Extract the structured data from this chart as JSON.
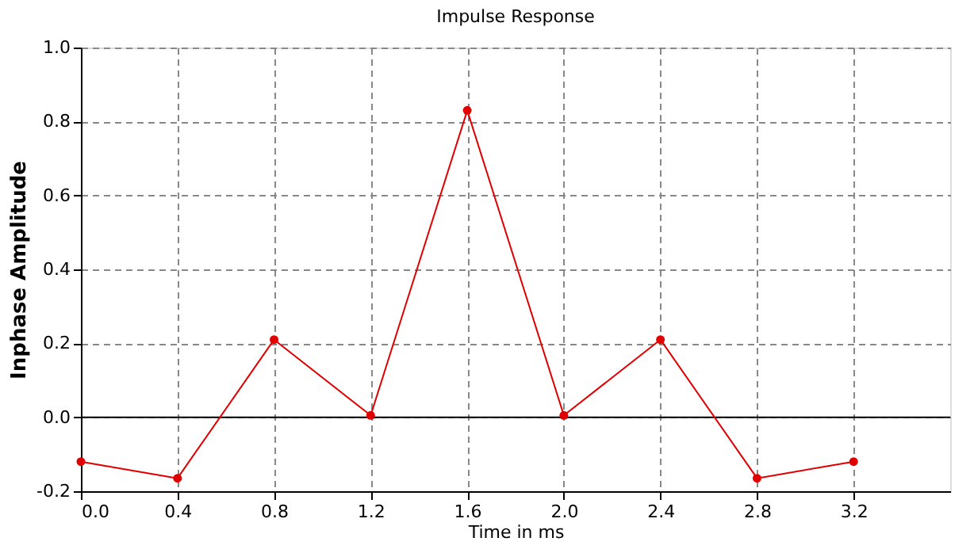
{
  "chart_data": {
    "type": "line",
    "title": "Impulse Response",
    "xlabel": "Time in ms",
    "ylabel": "Inphase Amplitude",
    "x": [
      0.0,
      0.4,
      0.8,
      1.2,
      1.6,
      2.0,
      2.4,
      2.8,
      3.2
    ],
    "series": [
      {
        "color": "#e00000",
        "values": [
          -0.12,
          -0.165,
          0.21,
          0.005,
          0.83,
          0.005,
          0.21,
          -0.165,
          -0.12
        ]
      }
    ],
    "xlim": [
      0,
      3.6
    ],
    "xticks": [
      {
        "value": 0,
        "label": "0.0"
      },
      0.4,
      0.8,
      1.2,
      1.6,
      {
        "value": 2,
        "label": "2.0"
      },
      2.4,
      2.8,
      3.2
    ],
    "ylim": [
      -0.2,
      1.0
    ],
    "yticks": [
      -0.2,
      {
        "value": 0,
        "label": "0.0"
      },
      0.2,
      0.4,
      0.6,
      0.8,
      {
        "value": 1,
        "label": "1.0"
      }
    ],
    "ref_lines": [
      {
        "axis": "y",
        "value": 0,
        "color": "#000000",
        "line_style": "solid"
      }
    ],
    "grid": true,
    "marker": "circle",
    "line_style": "solid"
  }
}
